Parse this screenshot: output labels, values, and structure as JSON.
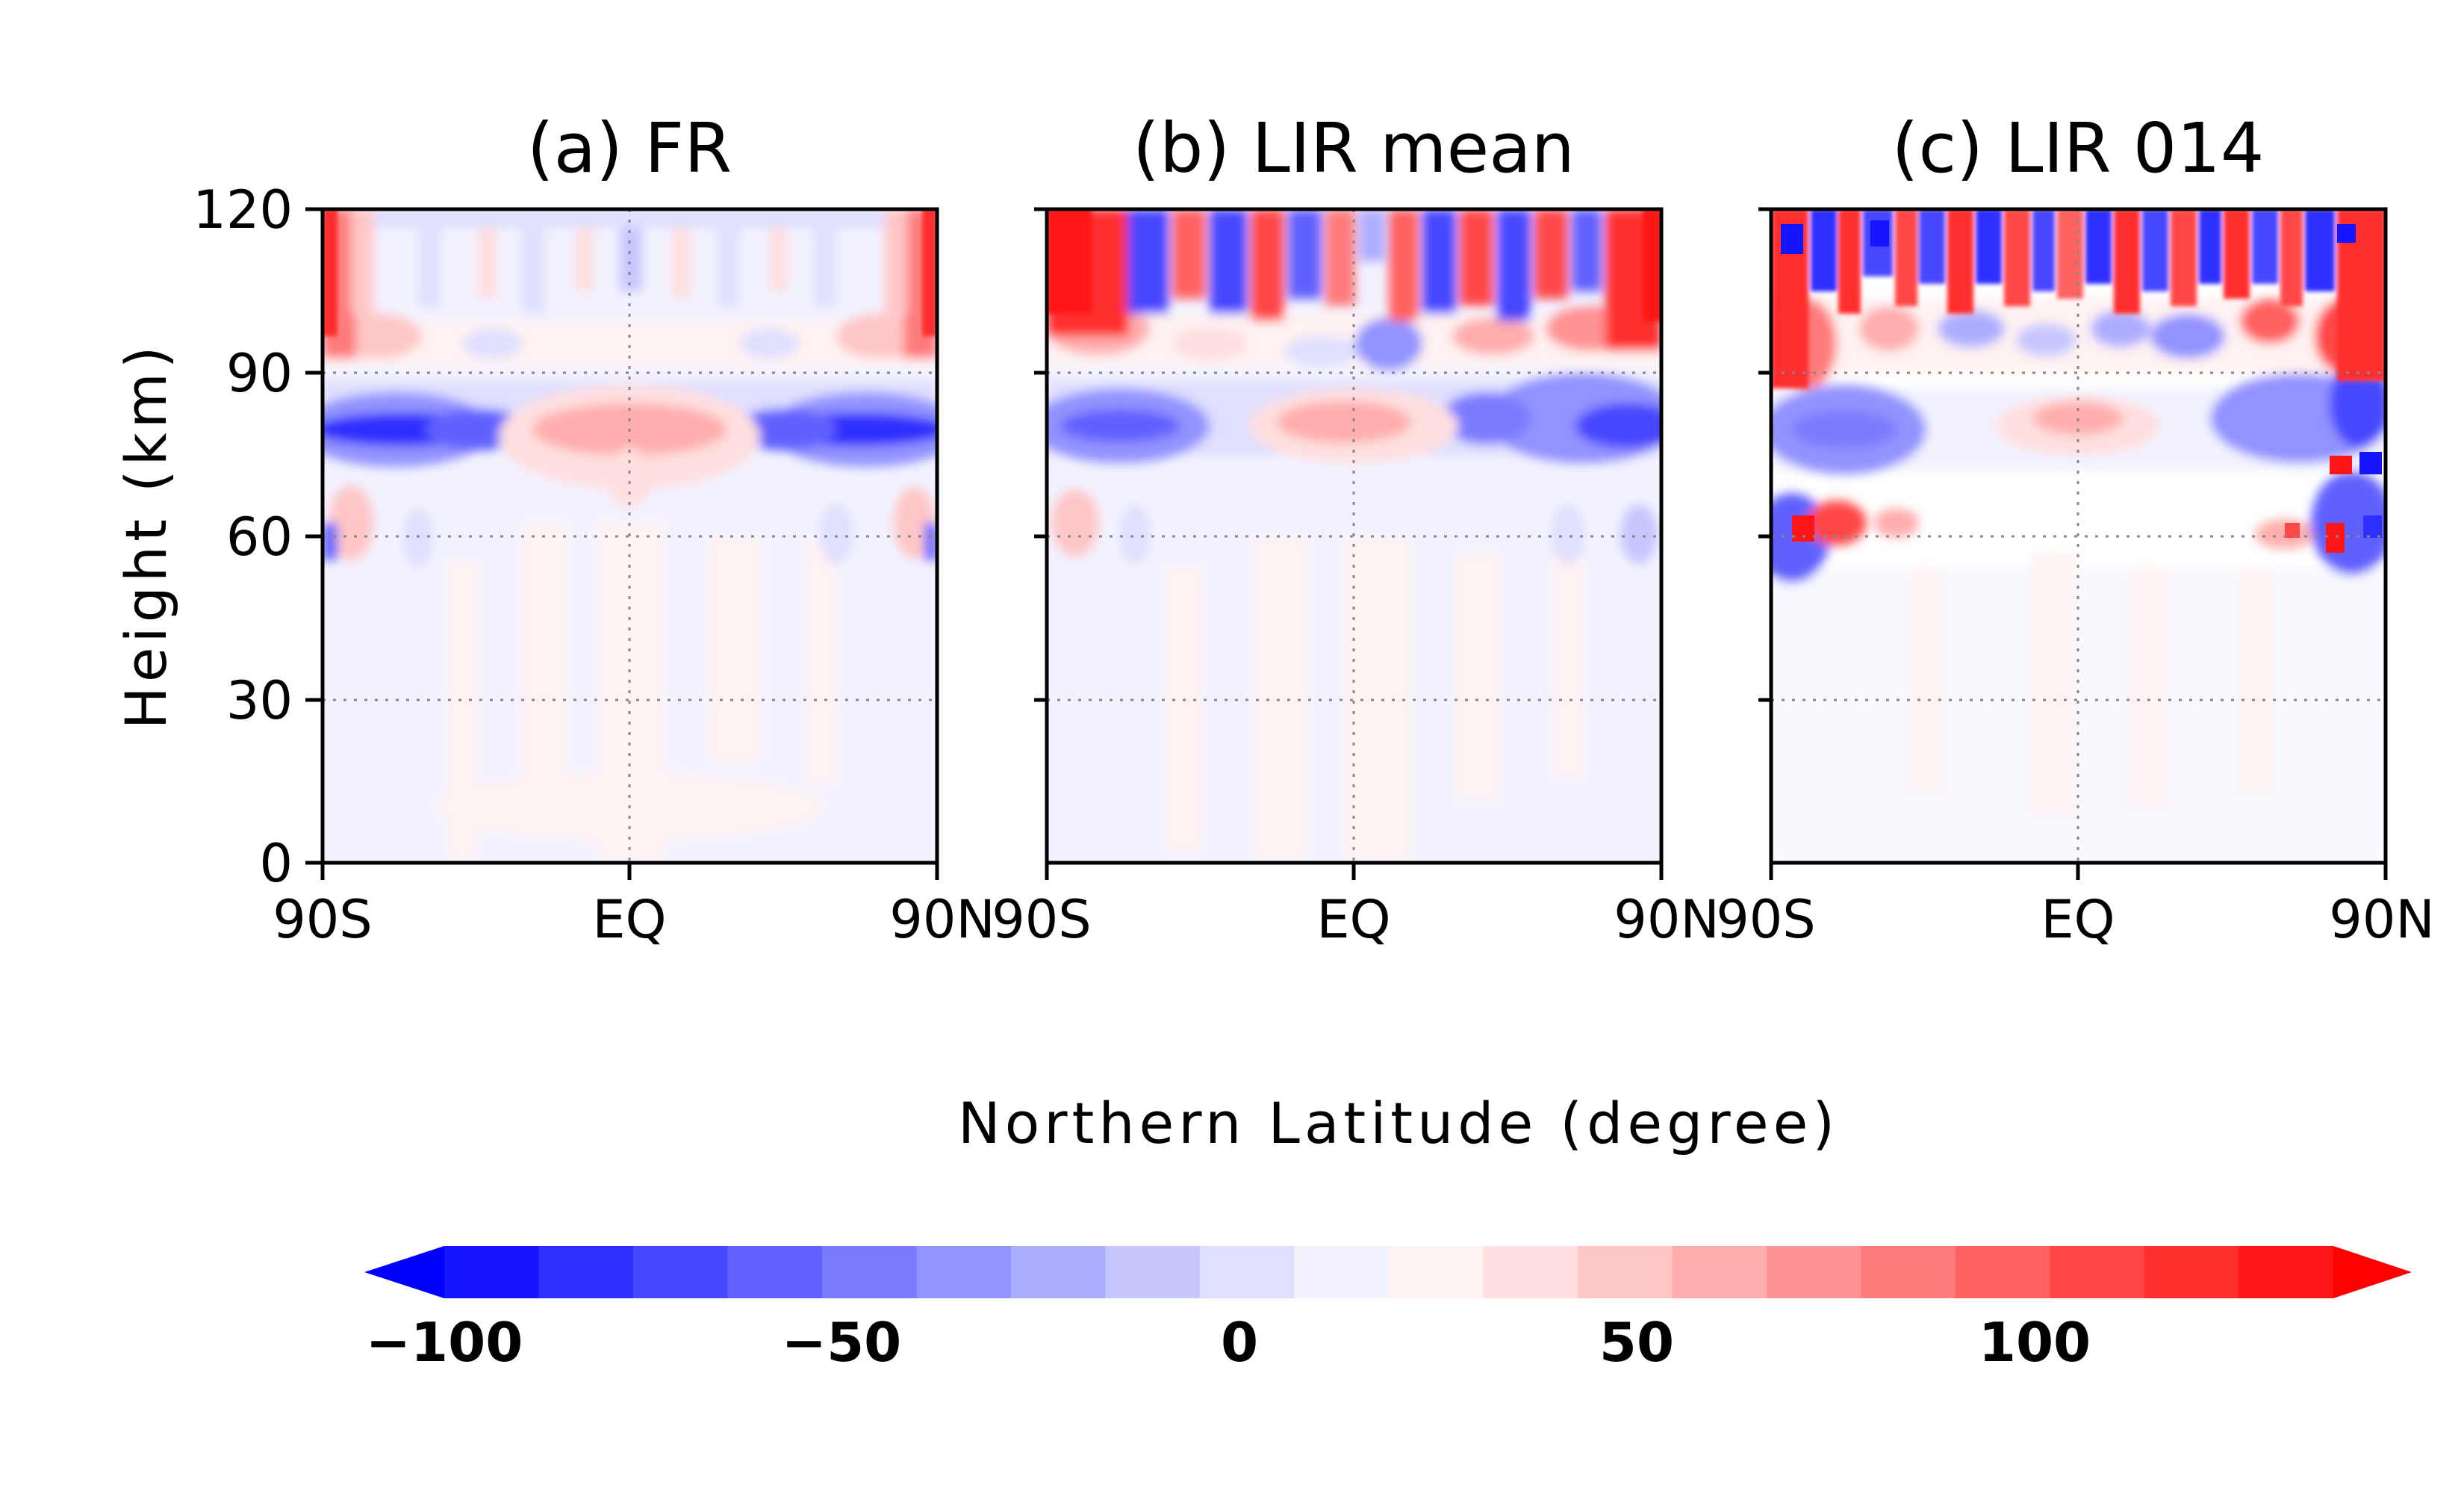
{
  "chart_data": [
    {
      "type": "heatmap",
      "title": "(a) FR",
      "x_tick_labels": [
        "90S",
        "EQ",
        "90N"
      ],
      "x_ticks": [
        -90,
        0,
        90
      ],
      "xlim": [
        -90,
        90
      ],
      "y_tick_labels": [
        "0",
        "30",
        "60",
        "90",
        "120"
      ],
      "y_ticks": [
        0,
        30,
        60,
        90,
        120
      ],
      "ylim": [
        0,
        120
      ],
      "ylabel": "Height (km)",
      "grid": "dotted at EQ and 30, 60, 90 km",
      "features": [
        {
          "lat": [
            -90,
            -70
          ],
          "height": [
            95,
            120
          ],
          "value": 90
        },
        {
          "lat": [
            70,
            90
          ],
          "height": [
            95,
            120
          ],
          "value": 90
        },
        {
          "lat": [
            -90,
            -40
          ],
          "height": [
            75,
            85
          ],
          "value": -75
        },
        {
          "lat": [
            40,
            90
          ],
          "height": [
            75,
            85
          ],
          "value": -75
        },
        {
          "lat": [
            -40,
            40
          ],
          "height": [
            72,
            85
          ],
          "value": 30
        },
        {
          "lat": [
            -90,
            90
          ],
          "height": [
            85,
            95
          ],
          "value": 15
        },
        {
          "lat": [
            -90,
            90
          ],
          "height": [
            100,
            120
          ],
          "value": -15
        },
        {
          "lat": [
            -90,
            -80
          ],
          "height": [
            60,
            70
          ],
          "value": 25
        },
        {
          "lat": [
            -90,
            90
          ],
          "height": [
            0,
            60
          ],
          "value": 5
        }
      ]
    },
    {
      "type": "heatmap",
      "title": "(b) LIR mean",
      "x_tick_labels": [
        "90S",
        "EQ",
        "90N"
      ],
      "x_ticks": [
        -90,
        0,
        90
      ],
      "xlim": [
        -90,
        90
      ],
      "y_ticks": [
        0,
        30,
        60,
        90,
        120
      ],
      "ylim": [
        0,
        120
      ],
      "grid": "dotted at EQ and 30, 60, 90 km",
      "features": [
        {
          "lat": [
            -90,
            -75
          ],
          "height": [
            95,
            120
          ],
          "value": 100
        },
        {
          "lat": [
            80,
            90
          ],
          "height": [
            95,
            120
          ],
          "value": 100
        },
        {
          "lat": [
            -75,
            80
          ],
          "height": [
            95,
            120
          ],
          "value": "alternating -80 / 80 vertical streaks"
        },
        {
          "lat": [
            -90,
            -40
          ],
          "height": [
            75,
            85
          ],
          "value": -60
        },
        {
          "lat": [
            40,
            90
          ],
          "height": [
            75,
            90
          ],
          "value": -60
        },
        {
          "lat": [
            -30,
            30
          ],
          "height": [
            72,
            85
          ],
          "value": 25
        },
        {
          "lat": [
            -90,
            -80
          ],
          "height": [
            60,
            70
          ],
          "value": 25
        },
        {
          "lat": [
            -90,
            90
          ],
          "height": [
            0,
            60
          ],
          "value": 5
        }
      ]
    },
    {
      "type": "heatmap",
      "title": "(c) LIR 014",
      "x_tick_labels": [
        "90S",
        "EQ",
        "90N"
      ],
      "x_ticks": [
        -90,
        0,
        90
      ],
      "xlim": [
        -90,
        90
      ],
      "y_ticks": [
        0,
        30,
        60,
        90,
        120
      ],
      "ylim": [
        0,
        120
      ],
      "grid": "dotted at EQ and 30, 60, 90 km",
      "features": [
        {
          "lat": [
            -90,
            90
          ],
          "height": [
            95,
            120
          ],
          "value": "alternating -100 / 100 vertical streaks"
        },
        {
          "lat": [
            -90,
            -60
          ],
          "height": [
            75,
            90
          ],
          "value": -50
        },
        {
          "lat": [
            40,
            90
          ],
          "height": [
            75,
            90
          ],
          "value": -50
        },
        {
          "lat": [
            -25,
            25
          ],
          "height": [
            75,
            85
          ],
          "value": 25
        },
        {
          "lat": [
            -90,
            -75
          ],
          "height": [
            50,
            65
          ],
          "value": "-100 and 100 mixed"
        },
        {
          "lat": [
            75,
            90
          ],
          "height": [
            50,
            72
          ],
          "value": "-100 and 100 mixed"
        },
        {
          "lat": [
            -90,
            90
          ],
          "height": [
            0,
            60
          ],
          "value": 3
        }
      ]
    }
  ],
  "x_axis_title": "Northern Latitude (degree)",
  "colorbar": {
    "min": -100,
    "max": 100,
    "step": 10,
    "tick_labels": [
      "−100",
      "−50",
      "0",
      "50",
      "100"
    ],
    "tick_values": [
      -100,
      -50,
      0,
      50,
      100
    ],
    "extend": "both",
    "colors": [
      "#1515ff",
      "#2e2eff",
      "#4747ff",
      "#6161ff",
      "#7a7aff",
      "#9393ff",
      "#adadff",
      "#c6c6ff",
      "#dfdfff",
      "#f2f2ff",
      "#fff2f2",
      "#ffdfdf",
      "#ffc6c6",
      "#ffadad",
      "#ff9393",
      "#ff7a7a",
      "#ff6161",
      "#ff4747",
      "#ff2e2e",
      "#ff1515"
    ],
    "extend_colors": {
      "low": "#0000ff",
      "high": "#ff0000"
    }
  }
}
